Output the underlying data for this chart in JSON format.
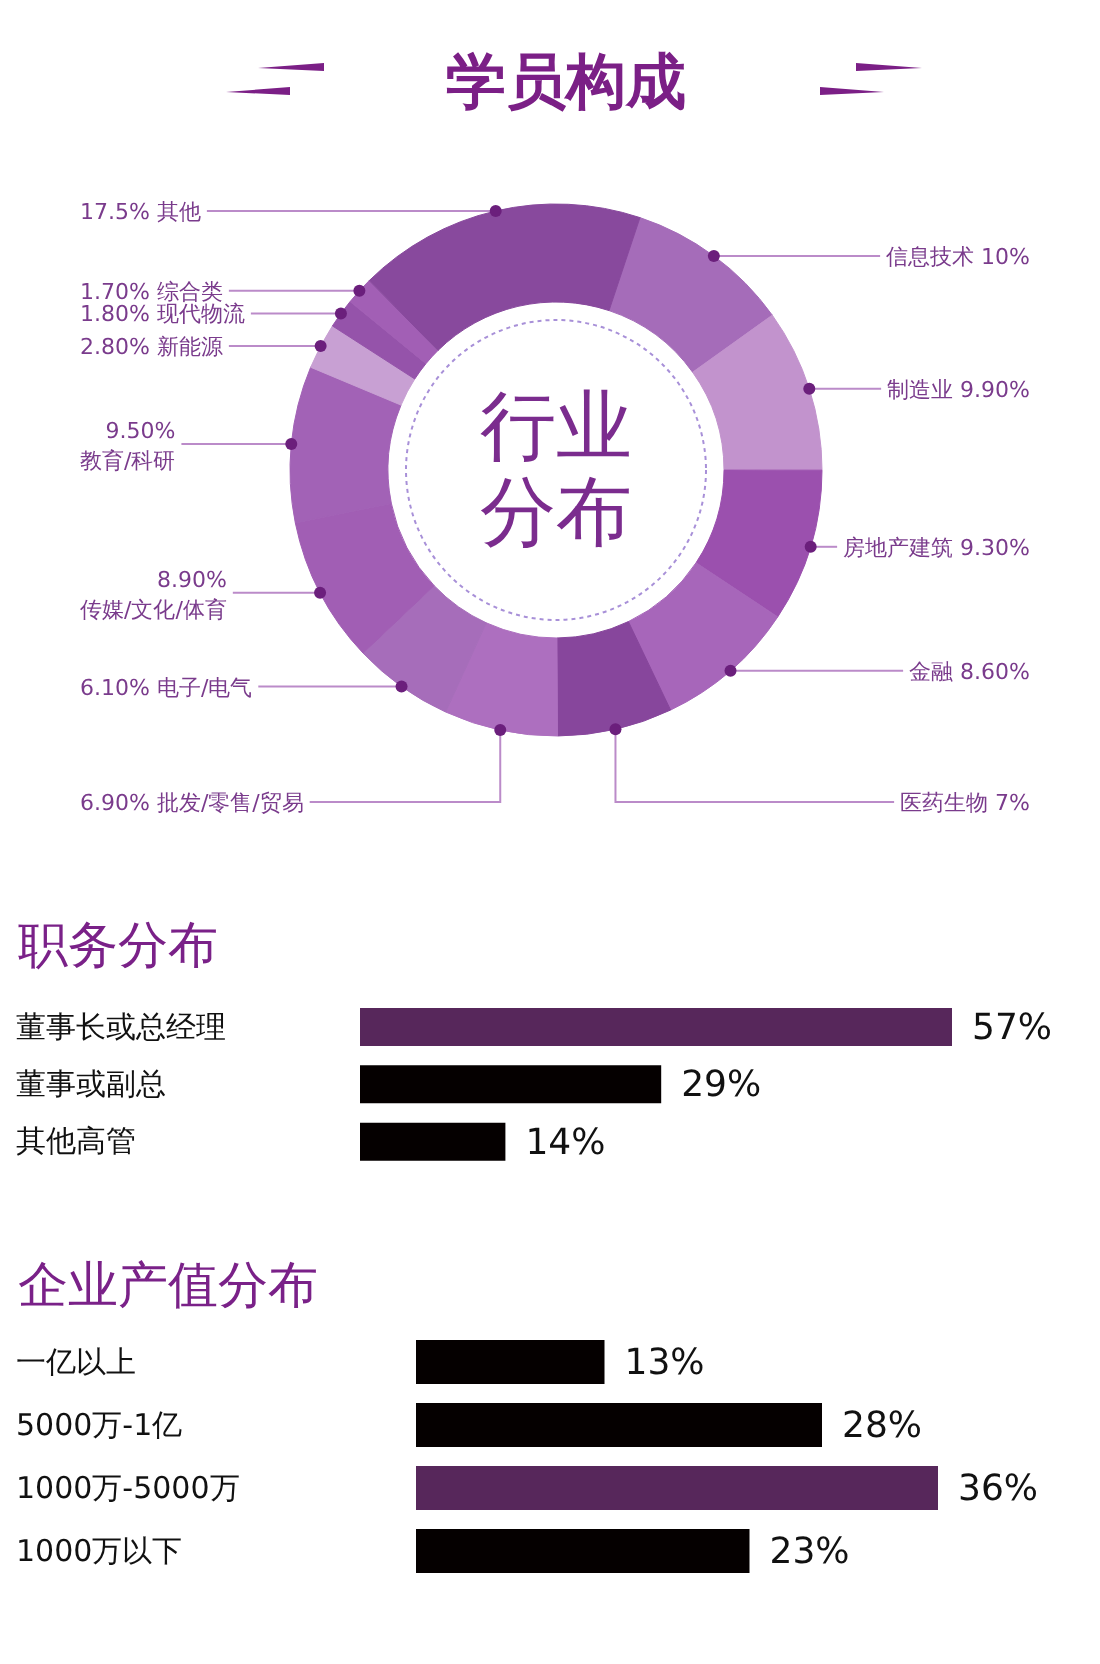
{
  "chart_data": [
    {
      "type": "donut",
      "title": "学员构成",
      "subtitle": "行业分布",
      "categories": [
        "信息技术",
        "制造业",
        "房地产建筑",
        "金融",
        "医药生物",
        "批发/零售/贸易",
        "电子/电气",
        "传媒/文化/体育",
        "教育/科研",
        "新能源",
        "现代物流",
        "综合类",
        "其他"
      ],
      "values": [
        10,
        9.9,
        9.3,
        8.6,
        7,
        6.9,
        6.1,
        8.9,
        9.5,
        2.8,
        1.8,
        1.7,
        17.5
      ],
      "value_labels": [
        "10%",
        "9.90%",
        "9.30%",
        "8.60%",
        "7%",
        "6.90%",
        "6.10%",
        "8.90%",
        "9.50%",
        "2.80%",
        "1.80%",
        "1.70%",
        "17.5%"
      ],
      "colors": [
        "#a56cb9",
        "#c293cd",
        "#9b50ae",
        "#a766ba",
        "#87469c",
        "#ad6fbf",
        "#a66dba",
        "#a15eb4",
        "#a262b6",
        "#c8a0d3",
        "#9553aa",
        "#a25fb5",
        "#88499d"
      ]
    },
    {
      "type": "bar",
      "orientation": "horizontal",
      "title": "职务分布",
      "categories": [
        "董事长或总经理",
        "董事或副总",
        "其他高管"
      ],
      "values": [
        57,
        29,
        14
      ],
      "value_labels": [
        "57%",
        "29%",
        "14%"
      ],
      "colors": [
        "#57275b",
        "#050000",
        "#050000"
      ]
    },
    {
      "type": "bar",
      "orientation": "horizontal",
      "title": "企业产值分布",
      "categories": [
        "一亿以上",
        "5000万-1亿",
        "1000万-5000万",
        "1000万以下"
      ],
      "values": [
        13,
        28,
        36,
        23
      ],
      "value_labels": [
        "13%",
        "28%",
        "36%",
        "23%"
      ],
      "colors": [
        "#050000",
        "#050000",
        "#57275b",
        "#050000"
      ]
    }
  ]
}
